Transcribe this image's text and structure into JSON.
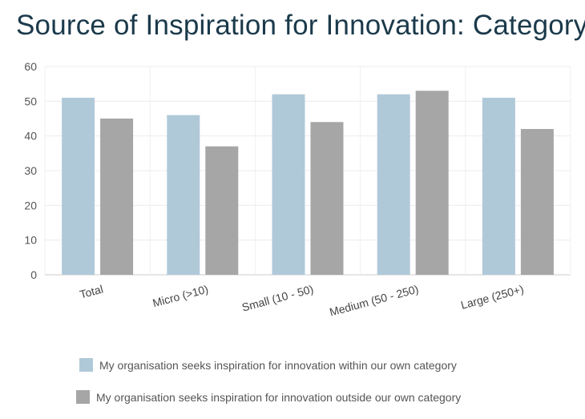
{
  "chart_data": {
    "type": "bar",
    "title": "Source of Inspiration for Innovation: Category",
    "categories": [
      "Total",
      "Micro (>10)",
      "Small (10 - 50)",
      "Medium (50 - 250)",
      "Large (250+)"
    ],
    "series": [
      {
        "name": "My organisation seeks inspiration for innovation within our own category",
        "values": [
          51,
          46,
          52,
          52,
          51
        ],
        "color": "#b0c9d9"
      },
      {
        "name": "My organisation seeks inspiration for innovation outside our own category",
        "values": [
          45,
          37,
          44,
          53,
          42
        ],
        "color": "#a6a6a6"
      }
    ],
    "ylim": [
      0,
      60
    ],
    "yticks": [
      0,
      10,
      20,
      30,
      40,
      50,
      60
    ],
    "grid": true,
    "legend_position": "bottom"
  }
}
